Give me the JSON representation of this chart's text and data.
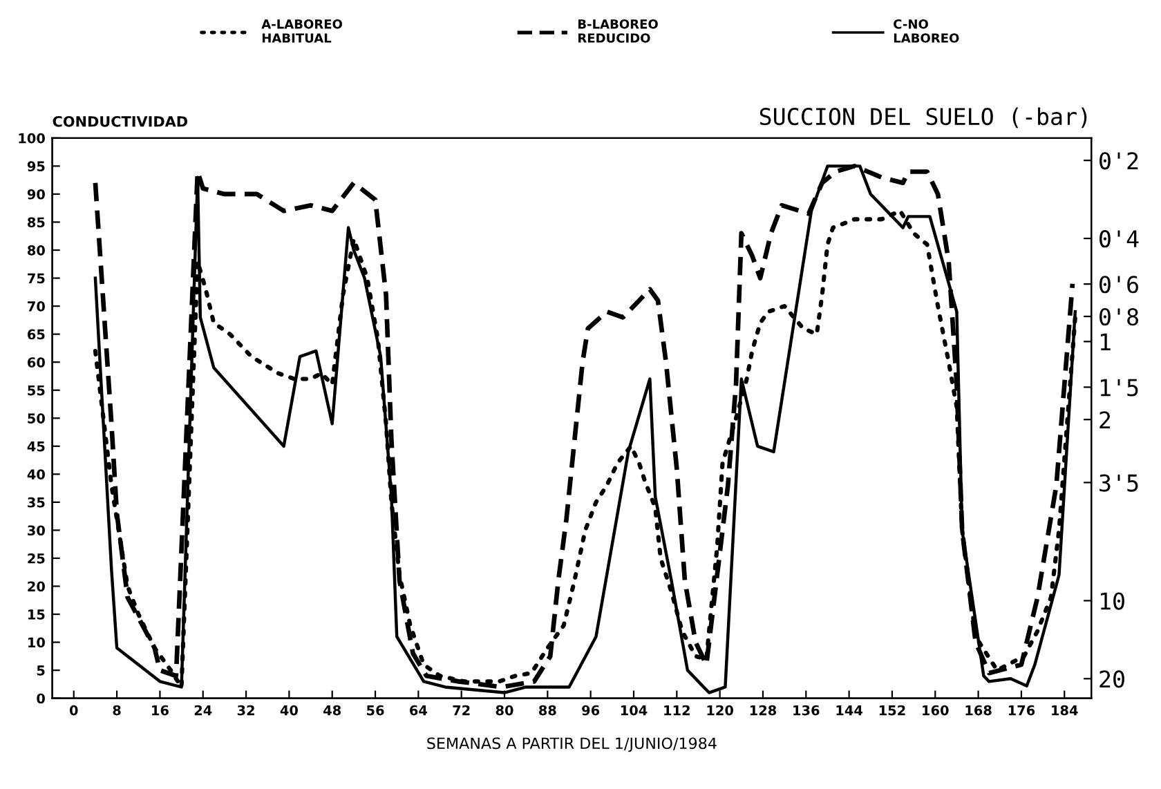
{
  "chart_data": {
    "type": "line",
    "xlabel": "SEMANAS A PARTIR DEL 1/JUNIO/1984",
    "ylabel": "CONDUCTIVIDAD",
    "y2label": "SUCCION DEL SUELO (-bar)",
    "legend": "top",
    "grid": false,
    "marker": "none",
    "xlim": [
      -4,
      189
    ],
    "xticks": [
      0,
      8,
      16,
      24,
      32,
      40,
      48,
      56,
      64,
      72,
      80,
      88,
      96,
      104,
      112,
      120,
      128,
      136,
      144,
      152,
      160,
      168,
      176,
      184
    ],
    "ylim": [
      0,
      100
    ],
    "yticks": [
      0,
      5,
      10,
      15,
      20,
      25,
      30,
      35,
      40,
      45,
      50,
      55,
      60,
      65,
      70,
      75,
      80,
      85,
      90,
      95,
      100
    ],
    "log": "y2",
    "y2lim": [
      23.8,
      0.164
    ],
    "y2ticks": [
      {
        "value": 0.2,
        "label": "0'2"
      },
      {
        "value": 0.4,
        "label": "0'4"
      },
      {
        "value": 0.6,
        "label": "0'6"
      },
      {
        "value": 0.8,
        "label": "0'8"
      },
      1,
      {
        "value": 1.5,
        "label": "1'5"
      },
      2,
      {
        "value": 3.5,
        "label": "3'5"
      },
      10,
      20
    ],
    "series": [
      {
        "name": "A-LABOREO\nHABITUAL",
        "color": "#000000",
        "line_style": "dotted",
        "x": [
          4,
          7,
          10,
          12,
          15,
          18,
          20,
          23,
          24.5,
          26,
          29,
          33,
          38,
          41,
          44,
          46,
          48,
          49,
          50,
          52,
          54.5,
          56.5,
          58,
          59,
          60.5,
          62.5,
          65,
          68,
          72.5,
          79,
          82,
          85,
          88,
          91,
          93,
          95,
          97,
          99,
          101,
          103.5,
          105,
          106,
          108,
          109,
          111,
          113,
          115.5,
          117.5,
          119.5,
          120.5,
          123,
          125,
          126,
          127.5,
          129,
          132,
          135.5,
          138,
          139,
          140,
          141,
          145,
          150,
          153.5,
          156,
          158.5,
          160.5,
          162.5,
          164,
          165,
          167.5,
          171.5,
          176.5,
          179,
          181.5,
          183,
          186
        ],
        "values": [
          62,
          38,
          20,
          15,
          9,
          5,
          2,
          78,
          73,
          67,
          65,
          61,
          58,
          57,
          57,
          58,
          56,
          64,
          72,
          82,
          75,
          64,
          49,
          35,
          22,
          13,
          6,
          4,
          3,
          3,
          4,
          4.5,
          9,
          13,
          21,
          30,
          35,
          38,
          42,
          45,
          42,
          39,
          34,
          25,
          19,
          12,
          7.5,
          7,
          27,
          42,
          50,
          57,
          62,
          67,
          69,
          70,
          66,
          65,
          72,
          81,
          84,
          85.5,
          85.5,
          87,
          83,
          81,
          70,
          60,
          52,
          30,
          11,
          5,
          7.5,
          12,
          18,
          30,
          68
        ]
      },
      {
        "name": "B-LABOREO\nREDUCIDO",
        "color": "#000000",
        "line_style": "dashed",
        "x": [
          4,
          7,
          8,
          10,
          15,
          16,
          19,
          23,
          24,
          28,
          34,
          39,
          44,
          48,
          52,
          56,
          58,
          59,
          60.5,
          63,
          65.5,
          71.5,
          79.5,
          85.5,
          88.5,
          90,
          91.5,
          94.5,
          95.5,
          99,
          102,
          107,
          108.5,
          110,
          112,
          113.5,
          115.5,
          117.5,
          119,
          121.5,
          123,
          124,
          126,
          127.5,
          129.5,
          131.5,
          136.5,
          139,
          141.5,
          145,
          150,
          154,
          155,
          158.5,
          160.5,
          162.5,
          164,
          165,
          167.5,
          170,
          176,
          179,
          182.5,
          185.5
        ],
        "values": [
          92,
          49,
          33,
          18,
          9,
          5,
          4,
          94,
          91,
          90,
          90,
          87,
          88,
          87,
          92,
          89,
          72,
          46,
          21,
          8,
          4,
          3,
          2,
          3,
          7.5,
          21,
          32,
          60,
          66,
          69,
          68,
          73,
          71,
          60,
          41,
          21,
          10,
          6,
          18,
          38,
          56,
          83,
          79,
          75,
          83,
          88,
          86.5,
          92,
          94,
          95,
          93,
          92,
          94,
          94,
          90,
          78,
          56,
          30,
          10,
          4.5,
          6,
          18,
          38,
          74
        ]
      },
      {
        "name": "C-NO\nLABOREO",
        "color": "#000000",
        "line_style": "solid",
        "x": [
          4,
          7,
          8,
          16,
          20,
          23,
          23.5,
          26,
          39,
          42,
          45,
          48,
          51,
          52,
          54,
          57,
          59,
          60,
          65,
          69,
          80,
          84,
          88,
          92,
          97,
          103,
          107,
          108,
          111,
          114,
          118,
          121,
          124,
          127,
          130,
          137,
          140,
          146,
          148,
          154,
          155,
          159,
          164,
          165,
          169,
          170,
          174,
          177,
          178.5,
          183,
          186
        ],
        "values": [
          75,
          23,
          9,
          3,
          2,
          93,
          68,
          59,
          45,
          61,
          62,
          49,
          84,
          80,
          75,
          61,
          36,
          11,
          3,
          2,
          1,
          2,
          2,
          2,
          11,
          44,
          57,
          36,
          21,
          5,
          1,
          2,
          57,
          45,
          44,
          87,
          95,
          95,
          90,
          84,
          86,
          86,
          69,
          30,
          4,
          3,
          3.5,
          2.2,
          6,
          22,
          69
        ]
      }
    ]
  }
}
